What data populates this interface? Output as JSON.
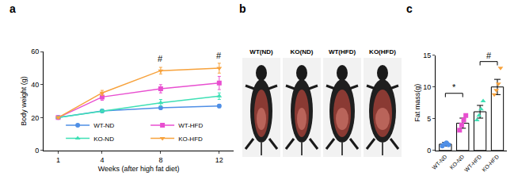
{
  "panel_labels": [
    "a",
    "b",
    "c"
  ],
  "photos": {
    "labels": [
      "WT(ND)",
      "KO(ND)",
      "WT(HFD)",
      "KO(HFD)"
    ]
  },
  "chart_data": [
    {
      "type": "line",
      "x_label": "Weeks (after high fat diet)",
      "y_label": "Body weight (g)",
      "x": [
        1,
        4,
        8,
        12
      ],
      "xlim": [
        0,
        13
      ],
      "xticks": [
        1,
        4,
        8,
        12
      ],
      "ylim": [
        0,
        60
      ],
      "yticks": [
        0,
        20,
        40,
        60
      ],
      "grid": false,
      "legend": "lower right",
      "series": [
        {
          "name": "WT-ND",
          "color": "#4f8fe6",
          "marker": "circle",
          "values": [
            20,
            24,
            26,
            27
          ],
          "errors": [
            0.5,
            0.8,
            1,
            1
          ]
        },
        {
          "name": "WT-HFD",
          "color": "#e84fd0",
          "marker": "square",
          "values": [
            20,
            32.5,
            37.5,
            41
          ],
          "errors": [
            0.5,
            2,
            2.5,
            4
          ]
        },
        {
          "name": "KO-ND",
          "color": "#3ee0b5",
          "marker": "triangle-up",
          "values": [
            20,
            24,
            29,
            33
          ],
          "errors": [
            0.5,
            1,
            2,
            2
          ]
        },
        {
          "name": "KO-HFD",
          "color": "#f7a23c",
          "marker": "triangle-down",
          "values": [
            20,
            35,
            48.5,
            50
          ],
          "errors": [
            0.5,
            1.5,
            2,
            3
          ]
        }
      ],
      "annotations": [
        {
          "x": 8,
          "y": 52,
          "text": "#"
        },
        {
          "x": 12,
          "y": 54,
          "text": "#"
        }
      ]
    },
    {
      "type": "bar",
      "y_label": "Fat mass(g)",
      "categories": [
        "WT-ND",
        "KO-ND",
        "WT-HFD",
        "KO-HFD"
      ],
      "values": [
        1,
        4.3,
        6.1,
        10
      ],
      "errors": [
        0.3,
        0.8,
        1,
        1.2
      ],
      "color": "#ffffff",
      "ylim": [
        0,
        15
      ],
      "yticks": [
        0,
        5,
        10,
        15
      ],
      "grid": false,
      "points": [
        {
          "name": "WT-ND",
          "color": "#4f8fe6",
          "marker": "circle",
          "values": [
            0.7,
            1,
            1.2,
            0.9
          ]
        },
        {
          "name": "KO-ND",
          "color": "#e84fd0",
          "marker": "square",
          "values": [
            3.2,
            4,
            4.8,
            5.5
          ]
        },
        {
          "name": "WT-HFD",
          "color": "#3ee0b5",
          "marker": "triangle-up",
          "values": [
            4.8,
            5.5,
            6.5,
            7.8
          ]
        },
        {
          "name": "KO-HFD",
          "color": "#f7a23c",
          "marker": "triangle-down",
          "values": [
            8.8,
            9.5,
            10.5,
            13
          ]
        }
      ],
      "brackets": [
        {
          "from": "WT-ND",
          "to": "KO-ND",
          "y": 9,
          "text": "*"
        },
        {
          "from": "WT-HFD",
          "to": "KO-HFD",
          "y": 14,
          "text": "#"
        }
      ]
    }
  ]
}
